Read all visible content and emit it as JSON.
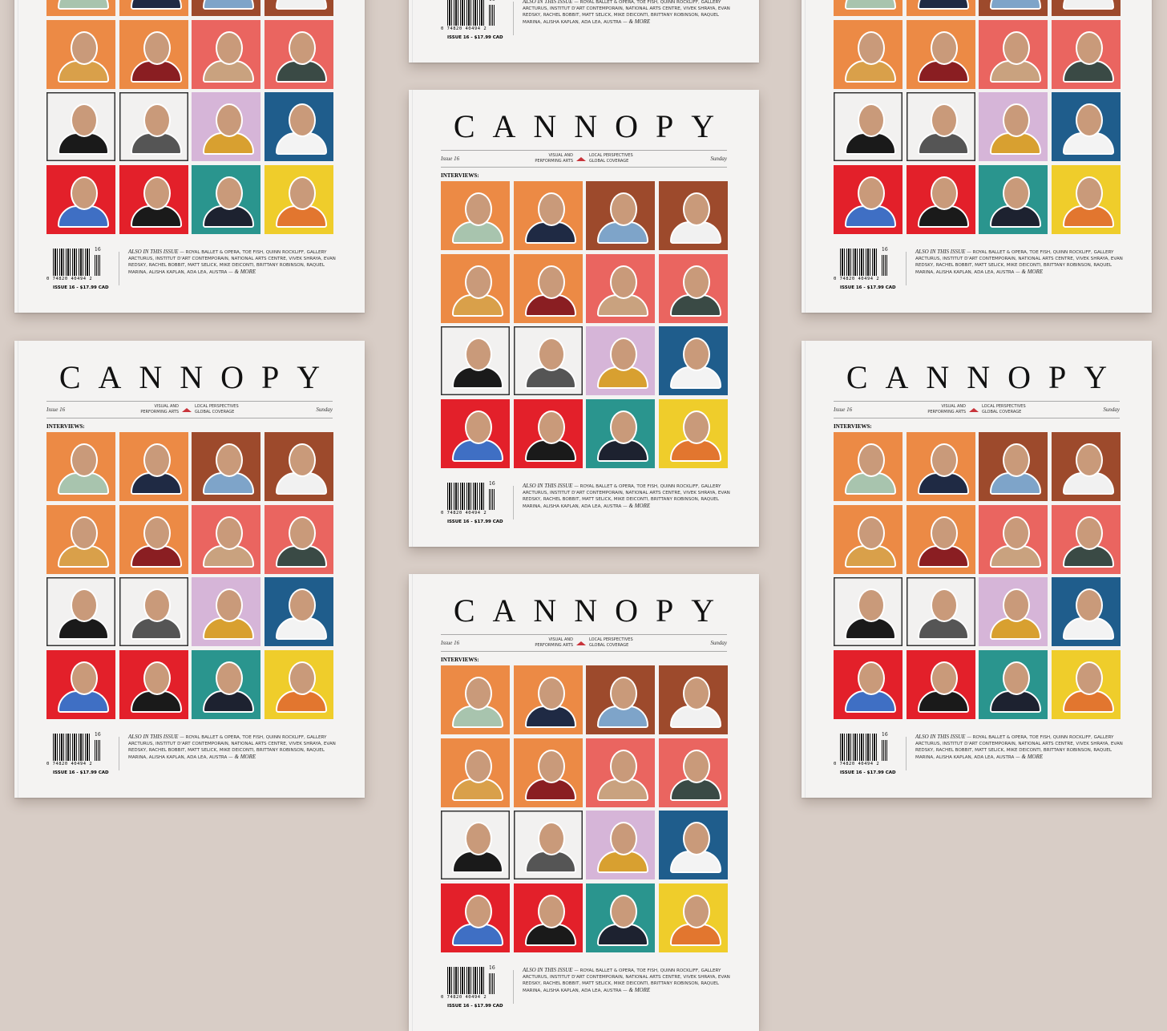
{
  "cover": {
    "masthead": "CANNOPY",
    "issue": "Issue 16",
    "section_left_1": "VISUAL AND",
    "section_left_2": "PERFORMING ARTS",
    "section_right_1": "LOCAL PERSPECTIVES",
    "section_right_2": "GLOBAL COVERAGE",
    "day": "Sunday",
    "interviews_heading": "INTERVIEWS:",
    "barcode_number": "0  74820 40494  2",
    "barcode_addon": "16",
    "price": "ISSUE 16 - $17.99 CAD",
    "also_lead": "ALSO IN THIS ISSUE",
    "also_text": " — Royal Ballet & Opera, Toe Fish, Quinn Rockliff, Gallery Arcturus, Institut d'Art Contemporain, National Arts Centre, Vivek Shraya, Evan Redsky, Rachel Bobbit, Matt Selick, Mike Deiconti, Brittany Robinson, Raquel Marina, Alisha Kaplan, Ada Lea, Austra — ",
    "also_more": "& MORE"
  },
  "colors": {
    "background": "#d8cdc6",
    "logo_mark": "#c8333a",
    "tiles": [
      "#ec8a45",
      "#ec8a45",
      "#9d4a2c",
      "#9d4a2c",
      "#ec8a45",
      "#ec8a45",
      "#ea6560",
      "#ea6560",
      "#f2f1f0",
      "#f2f1f0",
      "#d6b5d8",
      "#1f5d8c",
      "#e3202a",
      "#e3202a",
      "#2a958e",
      "#efcd2b"
    ],
    "shirts": [
      "#a8c4ae",
      "#1f2a44",
      "#7ea4c9",
      "#f1f1f1",
      "#d9a04a",
      "#8a1e22",
      "#c9a27f",
      "#3a4a45",
      "#1a1a1a",
      "#555555",
      "#d8a030",
      "#f3f3f3",
      "#3f6fc4",
      "#1a1a1a",
      "#1d2230",
      "#e2762f"
    ]
  }
}
